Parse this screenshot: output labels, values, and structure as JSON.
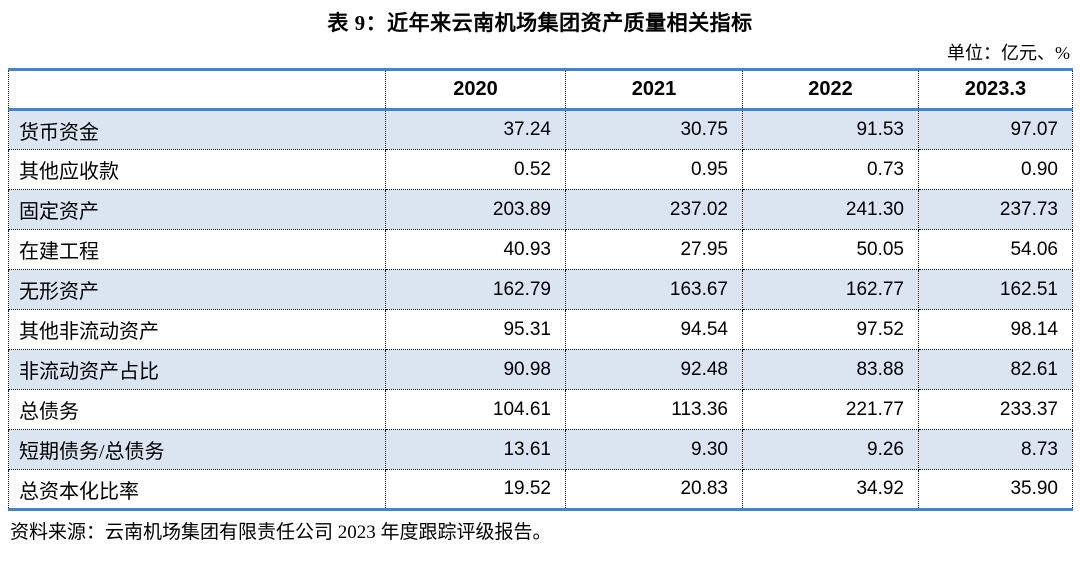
{
  "title": "表 9：近年来云南机场集团资产质量相关指标",
  "unit_label": "单位：亿元、%",
  "source": "资料来源：云南机场集团有限责任公司 2023 年度跟踪评级报告。",
  "colors": {
    "accent_blue": "#4f81bd",
    "row_shade": "#dbe5f1"
  },
  "chart_data": {
    "type": "table",
    "columns": [
      "",
      "2020",
      "2021",
      "2022",
      "2023.3"
    ],
    "rows": [
      {
        "label": "货币资金",
        "values": [
          "37.24",
          "30.75",
          "91.53",
          "97.07"
        ]
      },
      {
        "label": "其他应收款",
        "values": [
          "0.52",
          "0.95",
          "0.73",
          "0.90"
        ]
      },
      {
        "label": "固定资产",
        "values": [
          "203.89",
          "237.02",
          "241.30",
          "237.73"
        ]
      },
      {
        "label": "在建工程",
        "values": [
          "40.93",
          "27.95",
          "50.05",
          "54.06"
        ]
      },
      {
        "label": "无形资产",
        "values": [
          "162.79",
          "163.67",
          "162.77",
          "162.51"
        ]
      },
      {
        "label": "其他非流动资产",
        "values": [
          "95.31",
          "94.54",
          "97.52",
          "98.14"
        ]
      },
      {
        "label": "非流动资产占比",
        "values": [
          "90.98",
          "92.48",
          "83.88",
          "82.61"
        ]
      },
      {
        "label": "总债务",
        "values": [
          "104.61",
          "113.36",
          "221.77",
          "233.37"
        ]
      },
      {
        "label": "短期债务/总债务",
        "values": [
          "13.61",
          "9.30",
          "9.26",
          "8.73"
        ]
      },
      {
        "label": "总资本化比率",
        "values": [
          "19.52",
          "20.83",
          "34.92",
          "35.90"
        ]
      }
    ]
  }
}
